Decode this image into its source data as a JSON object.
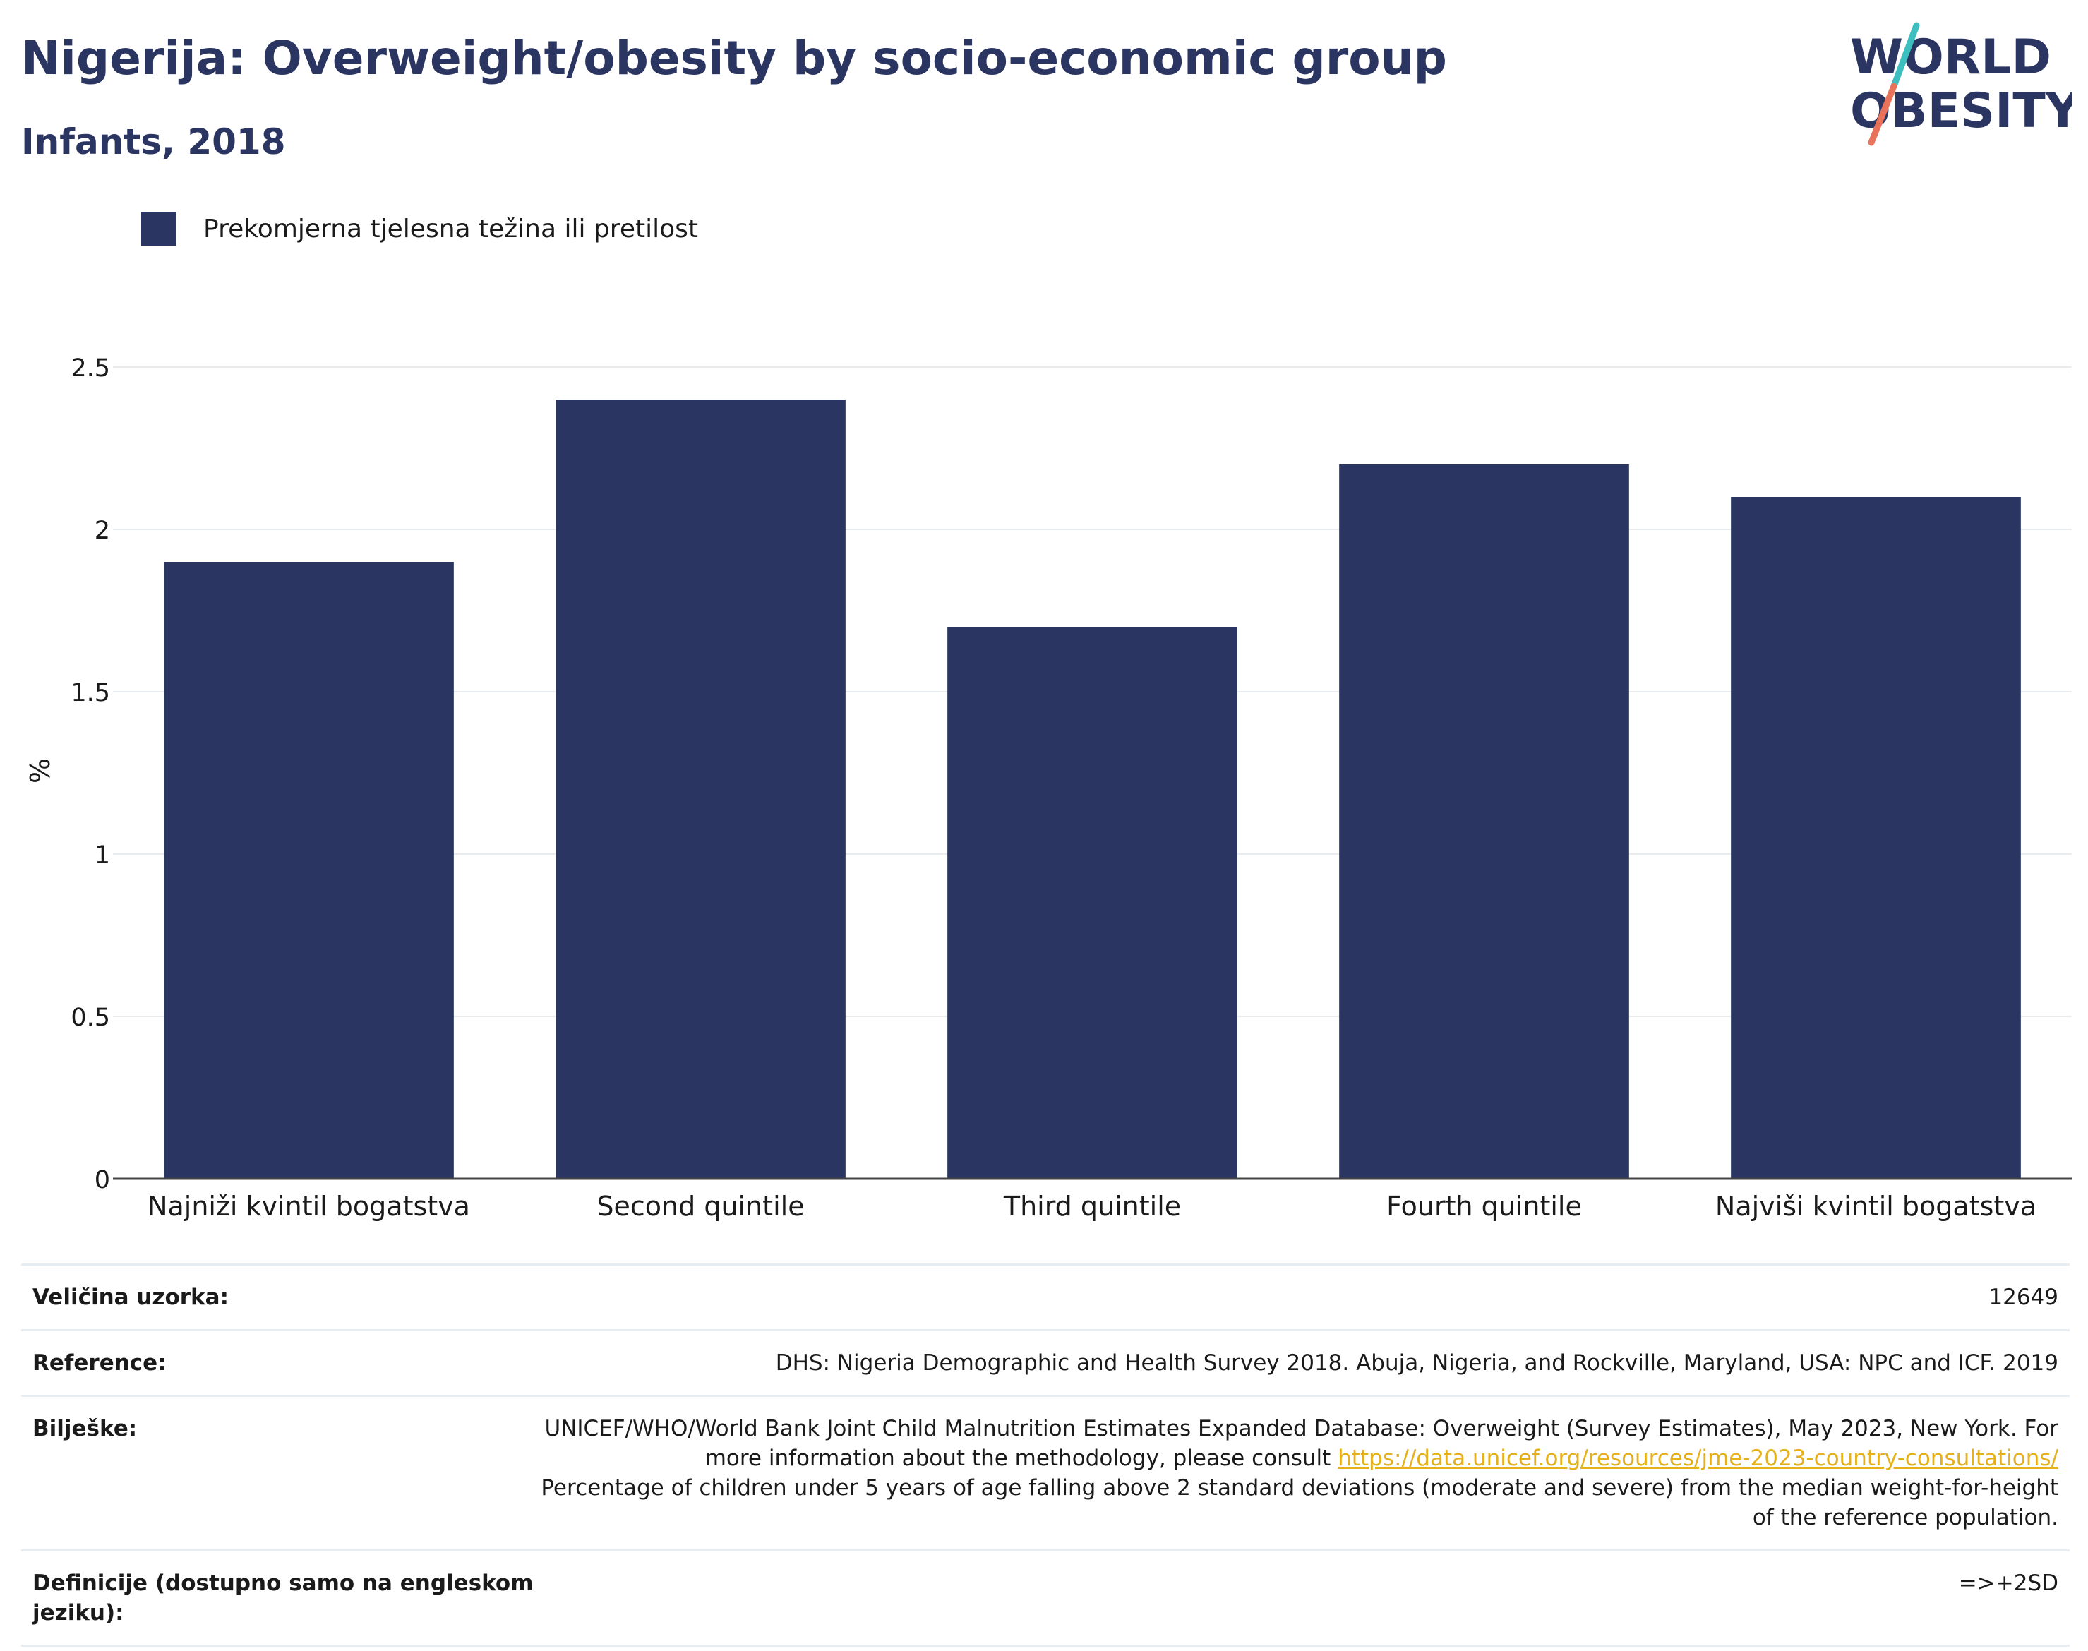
{
  "header": {
    "title": "Nigerija: Overweight/obesity by socio-economic group",
    "subtitle": "Infants, 2018"
  },
  "logo": {
    "line1": "WORLD",
    "line2": "OBESITY",
    "slash_colors": [
      "#3dbfbf",
      "#e8735a"
    ],
    "text_color": "#2b3561"
  },
  "chart_data": {
    "type": "bar",
    "categories": [
      "Najniži kvintil bogatstva",
      "Second quintile",
      "Third quintile",
      "Fourth quintile",
      "Najviši kvintil bogatstva"
    ],
    "series": [
      {
        "name": "Prekomjerna tjelesna težina ili pretilost",
        "values": [
          1.9,
          2.4,
          1.7,
          2.2,
          2.1
        ],
        "color": "#2b3561"
      }
    ],
    "ylabel": "%",
    "ylim": [
      0,
      2.5
    ],
    "yticks": [
      0,
      0.5,
      1,
      1.5,
      2,
      2.5
    ],
    "ytick_labels": [
      "0",
      "0.5",
      "1",
      "1.5",
      "2",
      "2.5"
    ],
    "grid": true,
    "legend": "top-left"
  },
  "info": [
    {
      "label": "Veličina uzorka:",
      "lines": [
        "12649"
      ]
    },
    {
      "label": "Reference:",
      "lines": [
        "DHS: Nigeria Demographic and Health Survey 2018. Abuja, Nigeria, and Rockville, Maryland, USA: NPC and ICF. 2019"
      ]
    },
    {
      "label": "Bilješke:",
      "text1": "UNICEF/WHO/World Bank Joint Child Malnutrition Estimates Expanded Database: Overweight (Survey Estimates), May 2023, New York. For more information about the methodology, please consult ",
      "link": "https://data.unicef.org/resources/jme-2023-country-consultations/",
      "text2": "Percentage of children under 5 years of age falling above 2 standard deviations (moderate and severe) from the median weight-for-height of the reference population."
    },
    {
      "label": "Definicije (dostupno samo na engleskom jeziku):",
      "lines": [
        "=>+2SD"
      ]
    }
  ]
}
